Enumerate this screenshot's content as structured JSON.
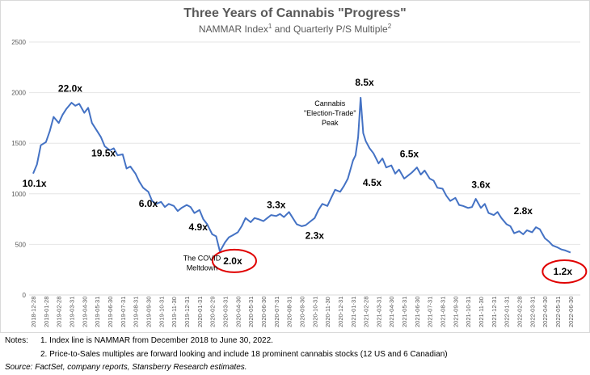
{
  "chart_data": {
    "type": "line",
    "title": "Three Years of Cannabis \"Progress\"",
    "subtitle": "NAMMAR Index",
    "subtitle_sup1": "1",
    "subtitle_mid": " and Quarterly P/S Multiple",
    "subtitle_sup2": "2",
    "ylim": [
      0,
      2500
    ],
    "yticks": [
      0,
      500,
      1000,
      1500,
      2000,
      2500
    ],
    "grid": true,
    "line_color": "#4472C4",
    "xticks": [
      "2018-12-28",
      "2019-01-28",
      "2019-02-28",
      "2019-03-31",
      "2019-04-30",
      "2019-05-31",
      "2019-06-30",
      "2019-07-31",
      "2019-08-31",
      "2019-09-30",
      "2019-10-31",
      "2019-11-30",
      "2019-12-31",
      "2020-01-31",
      "2020-02-29",
      "2020-03-31",
      "2020-04-30",
      "2020-05-31",
      "2020-06-30",
      "2020-07-31",
      "2020-08-31",
      "2020-09-30",
      "2020-10-31",
      "2020-11-30",
      "2020-12-31",
      "2021-01-31",
      "2021-02-28",
      "2021-03-31",
      "2021-04-30",
      "2021-05-31",
      "2021-06-30",
      "2021-07-31",
      "2021-08-31",
      "2021-09-30",
      "2021-10-31",
      "2021-11-30",
      "2021-12-31",
      "2022-01-31",
      "2022-02-28",
      "2022-03-31",
      "2022-04-30",
      "2022-05-31",
      "2022-06-30"
    ],
    "series": [
      {
        "name": "NAMMAR Index",
        "x_month_index": [
          0,
          0.3,
          0.6,
          1,
          1.3,
          1.6,
          2,
          2.3,
          2.6,
          3,
          3.3,
          3.6,
          4,
          4.3,
          4.6,
          5,
          5.3,
          5.6,
          6,
          6.3,
          6.6,
          7,
          7.3,
          7.6,
          8,
          8.3,
          8.6,
          9,
          9.3,
          9.6,
          10,
          10.3,
          10.6,
          11,
          11.3,
          11.6,
          12,
          12.3,
          12.6,
          13,
          13.3,
          13.6,
          14,
          14.3,
          14.6,
          15,
          15.3,
          15.6,
          16,
          16.3,
          16.6,
          17,
          17.3,
          17.6,
          18,
          18.3,
          18.6,
          19,
          19.3,
          19.6,
          20,
          20.3,
          20.6,
          21,
          21.3,
          21.6,
          22,
          22.3,
          22.6,
          23,
          23.3,
          23.6,
          24,
          24.3,
          24.6,
          25,
          25.2,
          25.4,
          25.6,
          25.8,
          26,
          26.3,
          26.6,
          27,
          27.3,
          27.6,
          28,
          28.3,
          28.6,
          29,
          29.3,
          29.6,
          30,
          30.3,
          30.6,
          31,
          31.3,
          31.6,
          32,
          32.3,
          32.6,
          33,
          33.3,
          33.6,
          34,
          34.3,
          34.6,
          35,
          35.3,
          35.6,
          36,
          36.3,
          36.6,
          37,
          37.3,
          37.6,
          38,
          38.3,
          38.6,
          39,
          39.3,
          39.6,
          40,
          40.3,
          40.6,
          41,
          41.3,
          41.6,
          42
        ],
        "values": [
          1200,
          1290,
          1480,
          1510,
          1620,
          1760,
          1700,
          1780,
          1840,
          1900,
          1870,
          1890,
          1800,
          1850,
          1700,
          1620,
          1560,
          1470,
          1430,
          1450,
          1380,
          1390,
          1250,
          1270,
          1200,
          1120,
          1060,
          1020,
          930,
          900,
          920,
          870,
          900,
          880,
          830,
          860,
          890,
          870,
          810,
          840,
          750,
          700,
          600,
          580,
          430,
          520,
          570,
          590,
          620,
          680,
          760,
          720,
          760,
          750,
          730,
          760,
          790,
          780,
          800,
          770,
          820,
          760,
          700,
          680,
          690,
          720,
          760,
          840,
          900,
          880,
          960,
          1040,
          1020,
          1080,
          1150,
          1330,
          1380,
          1560,
          1950,
          1600,
          1520,
          1450,
          1400,
          1300,
          1350,
          1260,
          1280,
          1200,
          1240,
          1150,
          1180,
          1210,
          1260,
          1190,
          1230,
          1150,
          1130,
          1060,
          1050,
          980,
          930,
          960,
          890,
          880,
          860,
          870,
          950,
          860,
          900,
          810,
          790,
          820,
          760,
          700,
          680,
          610,
          630,
          600,
          640,
          620,
          670,
          650,
          560,
          530,
          490,
          470,
          450,
          440,
          420,
          400,
          390
        ]
      }
    ],
    "annotations": [
      {
        "text": "10.1x",
        "x": 0.1,
        "y": 1070
      },
      {
        "text": "22.0x",
        "x": 2.9,
        "y": 2010
      },
      {
        "text": "19.5x",
        "x": 5.5,
        "y": 1370
      },
      {
        "text": "6.0x",
        "x": 9,
        "y": 870
      },
      {
        "text": "4.9x",
        "x": 12.9,
        "y": 640
      },
      {
        "text": "2.0x",
        "x": 15.6,
        "y": 305,
        "circled": true
      },
      {
        "text": "3.3x",
        "x": 19,
        "y": 860
      },
      {
        "text": "2.3x",
        "x": 22,
        "y": 555
      },
      {
        "text": "8.5x",
        "x": 25.9,
        "y": 2070
      },
      {
        "text": "4.5x",
        "x": 26.5,
        "y": 1080
      },
      {
        "text": "6.5x",
        "x": 29.4,
        "y": 1360
      },
      {
        "text": "3.6x",
        "x": 35,
        "y": 1060
      },
      {
        "text": "2.8x",
        "x": 38.3,
        "y": 800
      },
      {
        "text": "1.2x",
        "x": 41.4,
        "y": 200,
        "circled": true
      }
    ],
    "callouts": [
      {
        "lines": [
          "Cannabis",
          "\"Election-Trade\"",
          "Peak"
        ],
        "x": 23.2,
        "y": 1870
      },
      {
        "lines": [
          "The COVID",
          "Meltdown"
        ],
        "x": 13.2,
        "y": 340
      }
    ]
  },
  "notes": {
    "label": "Notes:",
    "note1": "1. Index line is NAMMAR from December 2018 to June 30, 2022.",
    "note2": "2. Price-to-Sales multiples are forward looking and include 18 prominent cannabis stocks (12 US and 6 Canadian)",
    "source": "Source: FactSet, company reports, Stansberry Research estimates."
  }
}
